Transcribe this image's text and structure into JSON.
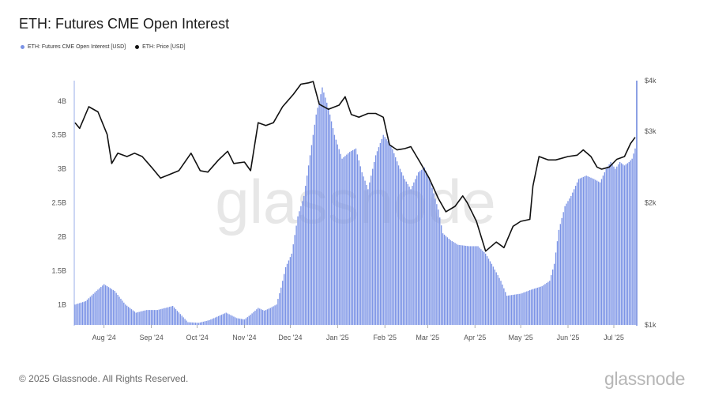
{
  "title": "ETH: Futures CME Open Interest",
  "footer": "© 2025 Glassnode. All Rights Reserved.",
  "brand": "glassnode",
  "watermark": "glassnode",
  "colors": {
    "open_interest": "#7b93e6",
    "price": "#111111"
  },
  "chart_data": {
    "type": "bar",
    "title": "ETH: Futures CME Open Interest",
    "legend_position": "top-left",
    "grid": false,
    "x_range": [
      "2024-07-13",
      "2025-07-15"
    ],
    "x_ticks": [
      "Aug '24",
      "Sep '24",
      "Oct '24",
      "Nov '24",
      "Dec '24",
      "Jan '25",
      "Feb '25",
      "Mar '25",
      "Apr '25",
      "May '25",
      "Jun '25",
      "Jul '25"
    ],
    "y_left": {
      "unit": "USD",
      "range": [
        0.7,
        4.3
      ],
      "ticks": [
        "1B",
        "1.5B",
        "2B",
        "2.5B",
        "3B",
        "3.5B",
        "4B"
      ],
      "tick_values": [
        1,
        1.5,
        2,
        2.5,
        3,
        3.5,
        4
      ]
    },
    "y_right": {
      "unit": "USD",
      "scale": "log",
      "range": [
        1000,
        4000
      ],
      "ticks": [
        "$1k",
        "$2k",
        "$3k",
        "$4k"
      ],
      "tick_values": [
        1000,
        2000,
        3000,
        4000
      ]
    },
    "series": [
      {
        "name": "ETH: Futures CME Open Interest [USD]",
        "kind": "bar",
        "unit": "billion USD",
        "points": [
          [
            "2024-07-13",
            1.0
          ],
          [
            "2024-07-20",
            1.05
          ],
          [
            "2024-07-27",
            1.2
          ],
          [
            "2024-08-01",
            1.3
          ],
          [
            "2024-08-08",
            1.2
          ],
          [
            "2024-08-15",
            1.0
          ],
          [
            "2024-08-22",
            0.88
          ],
          [
            "2024-08-29",
            0.92
          ],
          [
            "2024-09-05",
            0.92
          ],
          [
            "2024-09-12",
            0.96
          ],
          [
            "2024-09-15",
            0.98
          ],
          [
            "2024-09-20",
            0.86
          ],
          [
            "2024-09-25",
            0.74
          ],
          [
            "2024-10-02",
            0.73
          ],
          [
            "2024-10-09",
            0.77
          ],
          [
            "2024-10-16",
            0.84
          ],
          [
            "2024-10-20",
            0.88
          ],
          [
            "2024-10-27",
            0.8
          ],
          [
            "2024-11-01",
            0.78
          ],
          [
            "2024-11-05",
            0.85
          ],
          [
            "2024-11-10",
            0.95
          ],
          [
            "2024-11-14",
            0.91
          ],
          [
            "2024-11-18",
            0.95
          ],
          [
            "2024-11-22",
            1.0
          ],
          [
            "2024-11-25",
            1.25
          ],
          [
            "2024-11-28",
            1.55
          ],
          [
            "2024-12-02",
            1.75
          ],
          [
            "2024-12-06",
            2.3
          ],
          [
            "2024-12-10",
            2.6
          ],
          [
            "2024-12-14",
            3.2
          ],
          [
            "2024-12-18",
            3.8
          ],
          [
            "2024-12-22",
            4.2
          ],
          [
            "2024-12-26",
            3.9
          ],
          [
            "2024-12-30",
            3.5
          ],
          [
            "2025-01-04",
            3.15
          ],
          [
            "2025-01-09",
            3.25
          ],
          [
            "2025-01-13",
            3.3
          ],
          [
            "2025-01-17",
            2.95
          ],
          [
            "2025-01-21",
            2.7
          ],
          [
            "2025-01-26",
            3.2
          ],
          [
            "2025-01-31",
            3.5
          ],
          [
            "2025-02-05",
            3.35
          ],
          [
            "2025-02-10",
            3.05
          ],
          [
            "2025-02-14",
            2.85
          ],
          [
            "2025-02-18",
            2.7
          ],
          [
            "2025-02-23",
            2.95
          ],
          [
            "2025-02-27",
            3.02
          ],
          [
            "2025-03-03",
            2.8
          ],
          [
            "2025-03-08",
            2.4
          ],
          [
            "2025-03-11",
            2.05
          ],
          [
            "2025-03-16",
            1.95
          ],
          [
            "2025-03-21",
            1.88
          ],
          [
            "2025-03-28",
            1.86
          ],
          [
            "2025-04-03",
            1.86
          ],
          [
            "2025-04-08",
            1.75
          ],
          [
            "2025-04-12",
            1.6
          ],
          [
            "2025-04-18",
            1.35
          ],
          [
            "2025-04-22",
            1.13
          ],
          [
            "2025-05-01",
            1.16
          ],
          [
            "2025-05-08",
            1.22
          ],
          [
            "2025-05-15",
            1.27
          ],
          [
            "2025-05-20",
            1.35
          ],
          [
            "2025-05-23",
            1.6
          ],
          [
            "2025-05-26",
            2.1
          ],
          [
            "2025-05-30",
            2.45
          ],
          [
            "2025-06-03",
            2.6
          ],
          [
            "2025-06-08",
            2.85
          ],
          [
            "2025-06-13",
            2.9
          ],
          [
            "2025-06-18",
            2.85
          ],
          [
            "2025-06-22",
            2.8
          ],
          [
            "2025-06-26",
            3.0
          ],
          [
            "2025-06-29",
            3.1
          ],
          [
            "2025-07-02",
            3.0
          ],
          [
            "2025-07-05",
            3.1
          ],
          [
            "2025-07-08",
            3.05
          ],
          [
            "2025-07-11",
            3.1
          ],
          [
            "2025-07-13",
            3.15
          ],
          [
            "2025-07-15",
            3.3
          ]
        ]
      },
      {
        "name": "ETH: Price [USD]",
        "kind": "line",
        "unit": "USD",
        "points": [
          [
            "2024-07-13",
            3150
          ],
          [
            "2024-07-16",
            3050
          ],
          [
            "2024-07-22",
            3450
          ],
          [
            "2024-07-28",
            3350
          ],
          [
            "2024-08-03",
            2950
          ],
          [
            "2024-08-06",
            2500
          ],
          [
            "2024-08-10",
            2650
          ],
          [
            "2024-08-16",
            2600
          ],
          [
            "2024-08-21",
            2650
          ],
          [
            "2024-08-26",
            2600
          ],
          [
            "2024-09-01",
            2450
          ],
          [
            "2024-09-07",
            2300
          ],
          [
            "2024-09-13",
            2350
          ],
          [
            "2024-09-19",
            2400
          ],
          [
            "2024-09-27",
            2650
          ],
          [
            "2024-10-03",
            2400
          ],
          [
            "2024-10-08",
            2380
          ],
          [
            "2024-10-15",
            2550
          ],
          [
            "2024-10-21",
            2680
          ],
          [
            "2024-10-25",
            2500
          ],
          [
            "2024-11-01",
            2520
          ],
          [
            "2024-11-05",
            2400
          ],
          [
            "2024-11-10",
            3150
          ],
          [
            "2024-11-15",
            3100
          ],
          [
            "2024-11-20",
            3150
          ],
          [
            "2024-11-26",
            3450
          ],
          [
            "2024-12-03",
            3700
          ],
          [
            "2024-12-08",
            3920
          ],
          [
            "2024-12-13",
            3950
          ],
          [
            "2024-12-16",
            3980
          ],
          [
            "2024-12-20",
            3500
          ],
          [
            "2024-12-26",
            3400
          ],
          [
            "2025-01-02",
            3480
          ],
          [
            "2025-01-06",
            3650
          ],
          [
            "2025-01-10",
            3300
          ],
          [
            "2025-01-15",
            3250
          ],
          [
            "2025-01-21",
            3320
          ],
          [
            "2025-01-26",
            3320
          ],
          [
            "2025-01-31",
            3250
          ],
          [
            "2025-02-04",
            2780
          ],
          [
            "2025-02-09",
            2700
          ],
          [
            "2025-02-14",
            2720
          ],
          [
            "2025-02-18",
            2750
          ],
          [
            "2025-02-24",
            2520
          ],
          [
            "2025-03-02",
            2300
          ],
          [
            "2025-03-08",
            2050
          ],
          [
            "2025-03-13",
            1900
          ],
          [
            "2025-03-19",
            1960
          ],
          [
            "2025-03-24",
            2080
          ],
          [
            "2025-03-27",
            2000
          ],
          [
            "2025-04-02",
            1800
          ],
          [
            "2025-04-08",
            1520
          ],
          [
            "2025-04-15",
            1600
          ],
          [
            "2025-04-20",
            1550
          ],
          [
            "2025-04-26",
            1750
          ],
          [
            "2025-05-01",
            1800
          ],
          [
            "2025-05-07",
            1820
          ],
          [
            "2025-05-09",
            2200
          ],
          [
            "2025-05-13",
            2600
          ],
          [
            "2025-05-19",
            2550
          ],
          [
            "2025-05-24",
            2550
          ],
          [
            "2025-06-01",
            2600
          ],
          [
            "2025-06-07",
            2620
          ],
          [
            "2025-06-11",
            2700
          ],
          [
            "2025-06-16",
            2600
          ],
          [
            "2025-06-20",
            2450
          ],
          [
            "2025-06-23",
            2420
          ],
          [
            "2025-06-28",
            2450
          ],
          [
            "2025-07-03",
            2560
          ],
          [
            "2025-07-08",
            2600
          ],
          [
            "2025-07-12",
            2800
          ],
          [
            "2025-07-15",
            2900
          ]
        ]
      }
    ]
  }
}
